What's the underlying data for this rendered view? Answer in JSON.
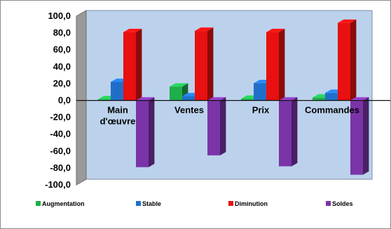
{
  "chart_data": {
    "type": "bar",
    "three_d": true,
    "categories": [
      "Main d'œuvre",
      "Ventes",
      "Prix",
      "Commandes"
    ],
    "category_labels": [
      [
        "Main",
        "d'œuvre"
      ],
      [
        "Ventes"
      ],
      [
        "Prix"
      ],
      [
        "Commandes"
      ]
    ],
    "series": [
      {
        "name": "Augmentation",
        "values": [
          1.5,
          16.5,
          2.0,
          3.5
        ],
        "color": "#1fae4b"
      },
      {
        "name": "Stable",
        "values": [
          22.0,
          5.0,
          20.5,
          9.0
        ],
        "color": "#1f6fc9"
      },
      {
        "name": "Diminution",
        "values": [
          81.0,
          82.5,
          81.0,
          92.0
        ],
        "color": "#e81010"
      },
      {
        "name": "Soldes",
        "values": [
          -79.0,
          -65.0,
          -78.0,
          -88.0
        ],
        "color": "#7a34a8"
      }
    ],
    "ylim": [
      -100,
      100
    ],
    "yticks": [
      "100,0",
      "80,0",
      "60,0",
      "40,0",
      "20,0",
      "0,0",
      "-20,0",
      "-40,0",
      "-60,0",
      "-80,0",
      "-100,0"
    ],
    "title": "",
    "xlabel": "",
    "ylabel": "",
    "grid": false,
    "legend_position": "bottom",
    "colors": {
      "plot_back_wall": "#bcd2ec",
      "plot_side_wall": "#9a9a9a",
      "outer_background": "#ffffff",
      "zero_line": "#111111"
    }
  }
}
